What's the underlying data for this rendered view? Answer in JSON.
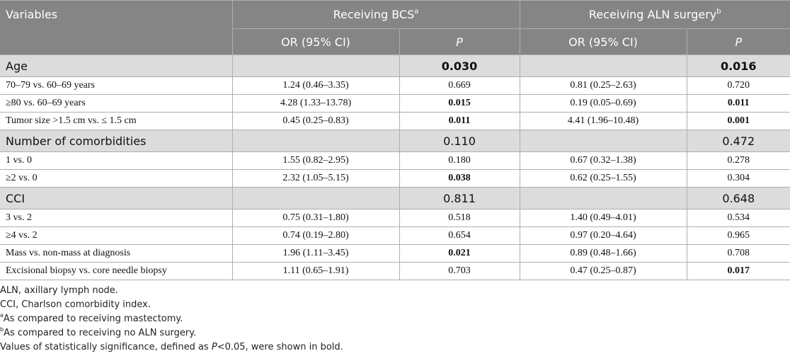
{
  "header": {
    "variables": "Variables",
    "bcs": "Receiving BCS",
    "bcs_sup": "a",
    "aln": "Receiving ALN surgery",
    "aln_sup": "b",
    "or": "OR (95% CI)",
    "p": "P"
  },
  "rows": [
    {
      "label": "Age",
      "or1": "",
      "p1": "0.030",
      "or2": "",
      "p2": "0.016"
    },
    {
      "label": "70–79 vs. 60–69 years",
      "or1": "1.24 (0.46–3.35)",
      "p1": "0.669",
      "or2": "0.81 (0.25–2.63)",
      "p2": "0.720"
    },
    {
      "label": "≥80 vs. 60–69 years",
      "or1": "4.28 (1.33–13.78)",
      "p1": "0.015",
      "or2": "0.19 (0.05–0.69)",
      "p2": "0.011"
    },
    {
      "label": "Tumor size >1.5 cm vs. ≤ 1.5 cm",
      "or1": "0.45 (0.25–0.83)",
      "p1": "0.011",
      "or2": "4.41 (1.96–10.48)",
      "p2": "0.001"
    },
    {
      "label": "Number of comorbidities",
      "or1": "",
      "p1": "0.110",
      "or2": "",
      "p2": "0.472"
    },
    {
      "label": "1 vs. 0",
      "or1": "1.55 (0.82–2.95)",
      "p1": "0.180",
      "or2": "0.67 (0.32–1.38)",
      "p2": "0.278"
    },
    {
      "label": "≥2 vs. 0",
      "or1": "2.32 (1.05–5.15)",
      "p1": "0.038",
      "or2": "0.62 (0.25–1.55)",
      "p2": "0.304"
    },
    {
      "label": "CCI",
      "or1": "",
      "p1": "0.811",
      "or2": "",
      "p2": "0.648"
    },
    {
      "label": "3 vs. 2",
      "or1": "0.75 (0.31–1.80)",
      "p1": "0.518",
      "or2": "1.40 (0.49–4.01)",
      "p2": "0.534"
    },
    {
      "label": "≥4 vs. 2",
      "or1": "0.74 (0.19–2.80)",
      "p1": "0.654",
      "or2": "0.97 (0.20–4.64)",
      "p2": "0.965"
    },
    {
      "label": "Mass vs. non-mass at diagnosis",
      "or1": "1.96 (1.11–3.45)",
      "p1": "0.021",
      "or2": "0.89 (0.48–1.66)",
      "p2": "0.708"
    },
    {
      "label": "Excisional biopsy vs. core needle biopsy",
      "or1": "1.11 (0.65–1.91)",
      "p1": "0.703",
      "or2": "0.47 (0.25–0.87)",
      "p2": "0.017"
    }
  ],
  "notes": {
    "aln": "ALN, axillary lymph node.",
    "cci": "CCI, Charlson comorbidity index.",
    "a_mark": "a",
    "a_text": "As compared to receiving mastectomy.",
    "b_mark": "b",
    "b_text": "As compared to receiving no ALN surgery.",
    "sig_pre": "Values of statistically significance, defined as ",
    "sig_p": "P",
    "sig_post": "<0.05, were shown in bold."
  }
}
